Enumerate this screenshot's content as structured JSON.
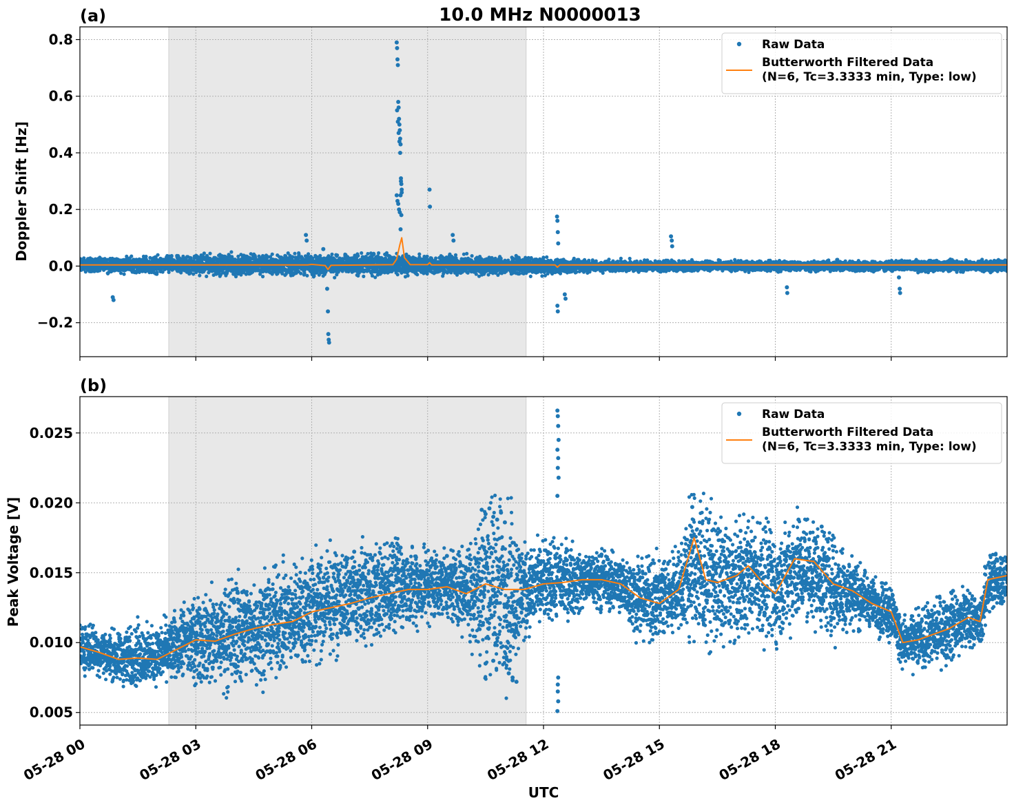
{
  "figure": {
    "title": "10.0 MHz N0000013",
    "xlabel": "UTC",
    "colors": {
      "raw": "#1f77b4",
      "filtered": "#ff7f0e",
      "shade": "#e8e8e8",
      "grid": "#b0b0b0"
    }
  },
  "chart_data": [
    {
      "type": "scatter",
      "panel_label": "(a)",
      "ylabel": "Doppler Shift [Hz]",
      "x_unit": "hours UTC since 05-28 00:00",
      "xlim": [
        0,
        24
      ],
      "ylim": [
        -0.32,
        0.845
      ],
      "yticks": [
        -0.2,
        0.0,
        0.2,
        0.4,
        0.6,
        0.8
      ],
      "ytick_labels": [
        "−0.2",
        "0.0",
        "0.2",
        "0.4",
        "0.6",
        "0.8"
      ],
      "xticks": [
        0,
        3,
        6,
        9,
        12,
        15,
        18,
        21
      ],
      "xtick_labels_shown": false,
      "shaded_interval": [
        2.3,
        11.55
      ],
      "grid": true,
      "legend": {
        "position": "top-right",
        "entries": [
          "Raw Data",
          "Butterworth Filtered Data",
          "(N=6, Tc=3.3333 min, Type: low)"
        ]
      },
      "series": [
        {
          "name": "Raw Data",
          "style": "points",
          "baseline_band": [
            [
              0,
              -0.012,
              0.02
            ],
            [
              2,
              -0.015,
              0.025
            ],
            [
              4,
              -0.02,
              0.03
            ],
            [
              6,
              -0.02,
              0.03
            ],
            [
              8,
              -0.02,
              0.03
            ],
            [
              10,
              -0.02,
              0.025
            ],
            [
              11.5,
              -0.02,
              0.02
            ],
            [
              13,
              -0.015,
              0.015
            ],
            [
              16,
              -0.012,
              0.012
            ],
            [
              24,
              -0.012,
              0.015
            ]
          ],
          "x": [
            0.85,
            0.87,
            5.85,
            5.87,
            6.3,
            6.4,
            6.42,
            6.43,
            6.44,
            6.45,
            8.2,
            8.21,
            8.22,
            8.23,
            8.24,
            8.25,
            8.26,
            8.27,
            8.28,
            8.29,
            8.3,
            8.31,
            8.32,
            8.33,
            8.2,
            8.22,
            8.24,
            8.26,
            8.28,
            8.3,
            8.32,
            8.21,
            8.23,
            8.25,
            8.27,
            8.29,
            8.31,
            8.33,
            8.3,
            9.05,
            9.06,
            9.65,
            9.67,
            12.35,
            12.36,
            12.37,
            12.38,
            12.36,
            12.37,
            12.55,
            12.57,
            15.3,
            15.32,
            15.33,
            18.3,
            18.31,
            21.2,
            21.22,
            21.23
          ],
          "y": [
            -0.11,
            -0.12,
            0.11,
            0.09,
            0.06,
            -0.08,
            -0.16,
            -0.24,
            -0.26,
            -0.27,
            0.79,
            0.77,
            0.73,
            0.71,
            0.58,
            0.56,
            0.52,
            0.5,
            0.48,
            0.45,
            0.43,
            0.31,
            0.29,
            0.27,
            0.25,
            0.23,
            0.22,
            0.2,
            0.19,
            0.25,
            0.18,
            0.55,
            0.51,
            0.47,
            0.44,
            0.4,
            0.3,
            0.26,
            0.13,
            0.27,
            0.21,
            0.11,
            0.09,
            0.175,
            0.16,
            0.12,
            0.08,
            -0.14,
            -0.16,
            -0.1,
            -0.115,
            0.105,
            0.09,
            0.07,
            -0.075,
            -0.095,
            -0.04,
            -0.08,
            -0.095
          ]
        },
        {
          "name": "Butterworth Filtered Data",
          "style": "line",
          "x": [
            0,
            5.9,
            6.0,
            6.35,
            6.42,
            6.5,
            8.1,
            8.2,
            8.28,
            8.33,
            8.4,
            8.55,
            9.0,
            9.05,
            9.1,
            12.3,
            12.36,
            12.42,
            24
          ],
          "y": [
            0.004,
            0.004,
            0.006,
            0.002,
            -0.012,
            0.003,
            0.005,
            0.025,
            0.075,
            0.1,
            0.03,
            0.005,
            0.005,
            0.012,
            0.004,
            0.004,
            -0.004,
            0.004,
            0.004
          ]
        }
      ]
    },
    {
      "type": "scatter",
      "panel_label": "(b)",
      "ylabel": "Peak Voltage [V]",
      "x_unit": "hours UTC since 05-28 00:00",
      "xlim": [
        0,
        24
      ],
      "ylim": [
        0.0041,
        0.0276
      ],
      "yticks": [
        0.005,
        0.01,
        0.015,
        0.02,
        0.025
      ],
      "ytick_labels": [
        "0.005",
        "0.010",
        "0.015",
        "0.020",
        "0.025"
      ],
      "xticks": [
        0,
        3,
        6,
        9,
        12,
        15,
        18,
        21
      ],
      "xtick_labels": [
        "05-28 00",
        "05-28 03",
        "05-28 06",
        "05-28 09",
        "05-28 12",
        "05-28 15",
        "05-28 18",
        "05-28 21"
      ],
      "shaded_interval": [
        2.3,
        11.55
      ],
      "grid": true,
      "legend": {
        "position": "top-right",
        "entries": [
          "Raw Data",
          "Butterworth Filtered Data",
          "(N=6, Tc=3.3333 min, Type: low)"
        ]
      },
      "series": [
        {
          "name": "Raw Data",
          "style": "points",
          "envelope": [
            [
              0,
              0.0085,
              0.0108
            ],
            [
              0.5,
              0.0082,
              0.0105
            ],
            [
              1,
              0.0076,
              0.0102
            ],
            [
              1.5,
              0.0075,
              0.0106
            ],
            [
              2,
              0.0077,
              0.0104
            ],
            [
              2.5,
              0.008,
              0.0115
            ],
            [
              3,
              0.0082,
              0.0125
            ],
            [
              3.5,
              0.0078,
              0.0125
            ],
            [
              4,
              0.008,
              0.0135
            ],
            [
              4.5,
              0.0085,
              0.0135
            ],
            [
              5,
              0.0088,
              0.014
            ],
            [
              5.5,
              0.0092,
              0.0145
            ],
            [
              6,
              0.0098,
              0.015
            ],
            [
              6.5,
              0.0105,
              0.0155
            ],
            [
              7,
              0.0108,
              0.0155
            ],
            [
              7.5,
              0.0108,
              0.016
            ],
            [
              8,
              0.0115,
              0.0162
            ],
            [
              8.5,
              0.012,
              0.016
            ],
            [
              9,
              0.0122,
              0.016
            ],
            [
              9.5,
              0.0125,
              0.0158
            ],
            [
              10,
              0.0118,
              0.016
            ],
            [
              10.5,
              0.0095,
              0.0185
            ],
            [
              11,
              0.0092,
              0.0185
            ],
            [
              11.5,
              0.0115,
              0.016
            ],
            [
              12,
              0.0125,
              0.016
            ],
            [
              12.5,
              0.0125,
              0.0165
            ],
            [
              13,
              0.013,
              0.016
            ],
            [
              13.5,
              0.013,
              0.016
            ],
            [
              14,
              0.0128,
              0.0155
            ],
            [
              14.5,
              0.0112,
              0.015
            ],
            [
              15,
              0.011,
              0.0152
            ],
            [
              15.5,
              0.0118,
              0.016
            ],
            [
              15.9,
              0.012,
              0.0192
            ],
            [
              16.2,
              0.0115,
              0.018
            ],
            [
              16.5,
              0.0112,
              0.0175
            ],
            [
              17,
              0.0115,
              0.017
            ],
            [
              17.3,
              0.0118,
              0.018
            ],
            [
              17.7,
              0.0115,
              0.0172
            ],
            [
              18,
              0.011,
              0.0165
            ],
            [
              18.5,
              0.0125,
              0.0182
            ],
            [
              19,
              0.0125,
              0.0178
            ],
            [
              19.5,
              0.0115,
              0.0165
            ],
            [
              20,
              0.0118,
              0.0155
            ],
            [
              20.5,
              0.0115,
              0.014
            ],
            [
              21,
              0.0108,
              0.0138
            ],
            [
              21.3,
              0.0088,
              0.0112
            ],
            [
              21.7,
              0.0088,
              0.0115
            ],
            [
              22,
              0.009,
              0.012
            ],
            [
              22.5,
              0.0095,
              0.0128
            ],
            [
              23,
              0.0102,
              0.0132
            ],
            [
              23.3,
              0.0102,
              0.0125
            ],
            [
              23.5,
              0.0125,
              0.0158
            ],
            [
              24,
              0.0135,
              0.016
            ]
          ],
          "x": [
            10.4,
            10.5,
            10.6,
            10.7,
            10.8,
            10.9,
            11.0,
            11.1,
            11.2,
            11.3,
            10.5,
            10.7,
            11.05,
            11.2,
            12.36,
            12.37,
            12.38,
            12.39,
            12.36,
            12.38,
            12.37,
            12.39,
            12.36,
            12.37,
            12.38,
            12.36,
            12.37,
            12.38,
            4.2,
            5.3,
            7.1,
            8.3,
            9.5,
            13.5,
            15.85,
            16.4,
            17.1,
            18.6,
            19.2,
            22.6,
            23.7
          ],
          "y": [
            0.0195,
            0.0192,
            0.0196,
            0.019,
            0.0188,
            0.0193,
            0.0186,
            0.0078,
            0.0075,
            0.0072,
            0.0085,
            0.0087,
            0.0088,
            0.0073,
            0.0266,
            0.0262,
            0.0255,
            0.0245,
            0.0238,
            0.0232,
            0.0225,
            0.0218,
            0.0205,
            0.0065,
            0.0058,
            0.0051,
            0.007,
            0.0075,
            0.0136,
            0.0132,
            0.0165,
            0.0168,
            0.0162,
            0.0163,
            0.0197,
            0.0181,
            0.018,
            0.0188,
            0.0183,
            0.0137,
            0.0163
          ]
        },
        {
          "name": "Butterworth Filtered Data",
          "style": "line",
          "x": [
            0,
            0.5,
            1,
            1.5,
            2,
            2.5,
            3,
            3.5,
            4,
            4.5,
            5,
            5.5,
            6,
            6.5,
            7,
            7.5,
            8,
            8.5,
            9,
            9.5,
            10,
            10.5,
            11,
            11.5,
            12,
            12.5,
            13,
            13.5,
            14,
            14.5,
            15,
            15.5,
            15.9,
            16.2,
            16.5,
            17,
            17.3,
            17.7,
            18,
            18.5,
            19,
            19.5,
            20,
            20.5,
            21,
            21.3,
            21.7,
            22,
            22.5,
            23,
            23.3,
            23.5,
            24
          ],
          "y": [
            0.0097,
            0.0093,
            0.0088,
            0.0089,
            0.0088,
            0.0095,
            0.0102,
            0.0101,
            0.0106,
            0.011,
            0.0113,
            0.0115,
            0.0122,
            0.0125,
            0.0128,
            0.0132,
            0.0135,
            0.0138,
            0.0138,
            0.014,
            0.0135,
            0.0142,
            0.0138,
            0.0138,
            0.0142,
            0.0143,
            0.0145,
            0.0145,
            0.0142,
            0.0132,
            0.0128,
            0.0138,
            0.0175,
            0.0145,
            0.0143,
            0.0148,
            0.0155,
            0.0142,
            0.0135,
            0.016,
            0.0158,
            0.0142,
            0.0137,
            0.0128,
            0.0122,
            0.01,
            0.0102,
            0.0105,
            0.011,
            0.0118,
            0.0115,
            0.0145,
            0.0148
          ]
        }
      ]
    }
  ]
}
